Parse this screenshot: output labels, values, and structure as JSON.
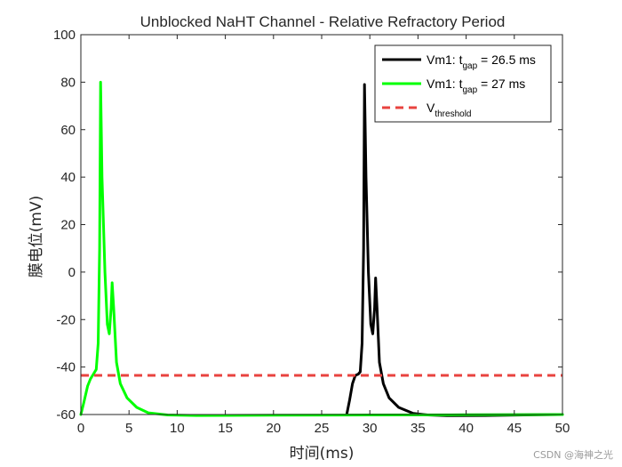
{
  "chart_data": {
    "type": "line",
    "title": "Unblocked NaHT Channel - Relative Refractory Period",
    "xlabel": "时间(ms)",
    "ylabel": "膜电位(mV)",
    "xlim": [
      0,
      50
    ],
    "ylim": [
      -60,
      100
    ],
    "xticks": [
      0,
      5,
      10,
      15,
      20,
      25,
      30,
      35,
      40,
      45,
      50
    ],
    "yticks": [
      -60,
      -40,
      -20,
      0,
      20,
      40,
      60,
      80,
      100
    ],
    "grid": false,
    "legend_position": "top-right",
    "series": [
      {
        "name": "Vm1: t_gap = 26.5 ms",
        "legend_parts": {
          "prefix": "Vm1: t",
          "sub": "gap",
          "suffix": " = 26.5 ms"
        },
        "color": "#000000",
        "style": "solid",
        "points": [
          [
            27.6,
            -60
          ],
          [
            27.9,
            -54
          ],
          [
            28.2,
            -47
          ],
          [
            28.5,
            -43.5
          ],
          [
            28.8,
            -43
          ],
          [
            29.0,
            -42
          ],
          [
            29.2,
            -30
          ],
          [
            29.35,
            10
          ],
          [
            29.45,
            79
          ],
          [
            29.6,
            40
          ],
          [
            29.85,
            0
          ],
          [
            30.1,
            -22
          ],
          [
            30.3,
            -26
          ],
          [
            30.5,
            -15
          ],
          [
            30.6,
            -2.5
          ],
          [
            30.75,
            -15
          ],
          [
            31.0,
            -38
          ],
          [
            31.4,
            -47
          ],
          [
            32.0,
            -53
          ],
          [
            33.0,
            -57
          ],
          [
            34.5,
            -59.5
          ],
          [
            36.0,
            -60.2
          ],
          [
            38.0,
            -60.5
          ],
          [
            42.0,
            -60.4
          ],
          [
            46.0,
            -60.2
          ],
          [
            50.0,
            -60
          ]
        ]
      },
      {
        "name": "Vm1: t_gap = 27 ms",
        "legend_parts": {
          "prefix": "Vm1: t",
          "sub": "gap",
          "suffix": " = 27 ms"
        },
        "color": "#00ff00",
        "style": "solid",
        "points": [
          [
            0,
            -60
          ],
          [
            0.3,
            -55
          ],
          [
            0.7,
            -48
          ],
          [
            1.0,
            -45
          ],
          [
            1.3,
            -43
          ],
          [
            1.6,
            -41
          ],
          [
            1.8,
            -30
          ],
          [
            1.95,
            10
          ],
          [
            2.05,
            80
          ],
          [
            2.2,
            40
          ],
          [
            2.5,
            0
          ],
          [
            2.75,
            -22
          ],
          [
            2.95,
            -26
          ],
          [
            3.15,
            -15
          ],
          [
            3.25,
            -4.5
          ],
          [
            3.4,
            -15
          ],
          [
            3.7,
            -38
          ],
          [
            4.1,
            -47
          ],
          [
            4.8,
            -53
          ],
          [
            5.8,
            -57
          ],
          [
            7.0,
            -59.3
          ],
          [
            9.0,
            -60.2
          ],
          [
            12.0,
            -60.4
          ],
          [
            20.0,
            -60.3
          ],
          [
            30.0,
            -60.2
          ],
          [
            40.0,
            -60.1
          ],
          [
            50.0,
            -60
          ]
        ]
      },
      {
        "name": "V_threshold",
        "legend_parts": {
          "prefix": "V",
          "sub": "threshold",
          "suffix": ""
        },
        "color": "#e8433f",
        "style": "dashed",
        "points": [
          [
            0,
            -43.5
          ],
          [
            50,
            -43.5
          ]
        ]
      }
    ]
  },
  "watermark": "CSDN @海神之光"
}
